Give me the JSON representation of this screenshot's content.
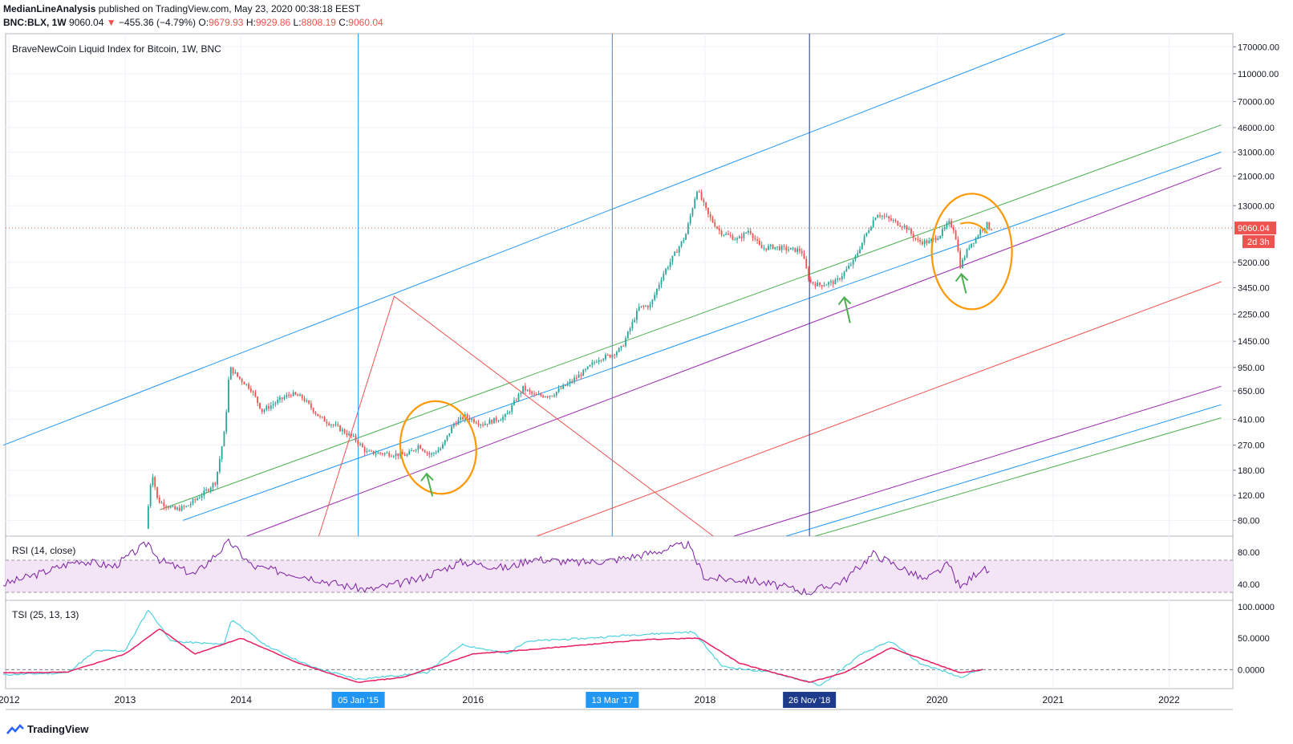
{
  "header": {
    "author": "MedianLineAnalysis",
    "published": "published on TradingView.com, May 23, 2020 00:38:18 EEST",
    "symbol": "BNC:BLX, 1W",
    "last": "9060.04",
    "change_arrow": "▼",
    "change": "−455.36 (−4.79%)",
    "o_label": "O:",
    "o_value": "9679.93",
    "h_label": "H:",
    "h_value": "9929.86",
    "l_label": "L:",
    "l_value": "8808.19",
    "c_label": "C:",
    "c_value": "9060.04"
  },
  "main_title": "BraveNewCoin Liquid Index for Bitcoin, 1W, BNC",
  "price_badge": "9060.04",
  "countdown_badge": "2d 3h",
  "rsi_title": "RSI (14, close)",
  "tsi_title": "TSI (25, 13, 13)",
  "footer_brand": "TradingView",
  "colors": {
    "up": "#26a69a",
    "down": "#ef5350",
    "rsi": "#7b1fa2",
    "rsi_band": "#f3e5f5",
    "tsi": "#4dd0e1",
    "tsi_signal": "#e91e63",
    "blue": "#2196f3",
    "green": "#4caf50",
    "purple": "#9c27b0",
    "orange": "#ff9800",
    "darkblue": "#1e3a8a"
  },
  "chart_data": {
    "type": "candlestick",
    "title": "BraveNewCoin Liquid Index for Bitcoin, 1W, BNC",
    "scale": "log",
    "ylim": [
      62,
      210000
    ],
    "y_ticks": [
      {
        "v": 170000,
        "label": "170000.00"
      },
      {
        "v": 110000,
        "label": "110000.00"
      },
      {
        "v": 70000,
        "label": "70000.00"
      },
      {
        "v": 46000,
        "label": "46000.00"
      },
      {
        "v": 31000,
        "label": "31000.00"
      },
      {
        "v": 21000,
        "label": "21000.00"
      },
      {
        "v": 13000,
        "label": "13000.00"
      },
      {
        "v": 5200,
        "label": "5200.00"
      },
      {
        "v": 3450,
        "label": "3450.00"
      },
      {
        "v": 2250,
        "label": "2250.00"
      },
      {
        "v": 1450,
        "label": "1450.00"
      },
      {
        "v": 950,
        "label": "950.00"
      },
      {
        "v": 650,
        "label": "650.00"
      },
      {
        "v": 410,
        "label": "410.00"
      },
      {
        "v": 270,
        "label": "270.00"
      },
      {
        "v": 180,
        "label": "180.00"
      },
      {
        "v": 120,
        "label": "120.00"
      },
      {
        "v": 80,
        "label": "80.00"
      }
    ],
    "x_ticks": [
      {
        "t": 2012.0,
        "label": "2012"
      },
      {
        "t": 2013.0,
        "label": "2013"
      },
      {
        "t": 2014.0,
        "label": "2014"
      },
      {
        "t": 2016.0,
        "label": "2016"
      },
      {
        "t": 2018.0,
        "label": "2018"
      },
      {
        "t": 2020.0,
        "label": "2020"
      },
      {
        "t": 2021.0,
        "label": "2021"
      },
      {
        "t": 2022.0,
        "label": "2022"
      }
    ],
    "vertical_markers": [
      {
        "t": 2015.01,
        "label": "05 Jan '15",
        "color": "#2196f3"
      },
      {
        "t": 2017.2,
        "label": "13 Mar '17",
        "color": "#2196f3"
      },
      {
        "t": 2018.9,
        "label": "26 Nov '18",
        "color": "#1e3a8a"
      }
    ],
    "price_path": [
      [
        2013.2,
        70
      ],
      [
        2013.25,
        180
      ],
      [
        2013.3,
        110
      ],
      [
        2013.45,
        95
      ],
      [
        2013.55,
        100
      ],
      [
        2013.7,
        125
      ],
      [
        2013.8,
        150
      ],
      [
        2013.88,
        350
      ],
      [
        2013.92,
        950
      ],
      [
        2014.0,
        800
      ],
      [
        2014.1,
        680
      ],
      [
        2014.2,
        470
      ],
      [
        2014.35,
        560
      ],
      [
        2014.45,
        620
      ],
      [
        2014.55,
        580
      ],
      [
        2014.7,
        420
      ],
      [
        2014.85,
        360
      ],
      [
        2015.0,
        300
      ],
      [
        2015.1,
        240
      ],
      [
        2015.3,
        235
      ],
      [
        2015.45,
        230
      ],
      [
        2015.55,
        270
      ],
      [
        2015.65,
        230
      ],
      [
        2015.75,
        260
      ],
      [
        2015.85,
        380
      ],
      [
        2015.95,
        430
      ],
      [
        2016.1,
        380
      ],
      [
        2016.3,
        430
      ],
      [
        2016.45,
        680
      ],
      [
        2016.55,
        600
      ],
      [
        2016.7,
        610
      ],
      [
        2016.85,
        740
      ],
      [
        2017.0,
        920
      ],
      [
        2017.1,
        1100
      ],
      [
        2017.2,
        1150
      ],
      [
        2017.3,
        1300
      ],
      [
        2017.45,
        2500
      ],
      [
        2017.55,
        2600
      ],
      [
        2017.65,
        4200
      ],
      [
        2017.75,
        5800
      ],
      [
        2017.85,
        8000
      ],
      [
        2017.95,
        17000
      ],
      [
        2018.05,
        11000
      ],
      [
        2018.15,
        8500
      ],
      [
        2018.3,
        7500
      ],
      [
        2018.4,
        8800
      ],
      [
        2018.5,
        6500
      ],
      [
        2018.6,
        6700
      ],
      [
        2018.75,
        6400
      ],
      [
        2018.85,
        6300
      ],
      [
        2018.92,
        3800
      ],
      [
        2019.0,
        3600
      ],
      [
        2019.15,
        3800
      ],
      [
        2019.3,
        5300
      ],
      [
        2019.4,
        8000
      ],
      [
        2019.5,
        11500
      ],
      [
        2019.6,
        10500
      ],
      [
        2019.75,
        9200
      ],
      [
        2019.85,
        7300
      ],
      [
        2019.95,
        7200
      ],
      [
        2020.05,
        8200
      ],
      [
        2020.12,
        9900
      ],
      [
        2020.17,
        8800
      ],
      [
        2020.22,
        4900
      ],
      [
        2020.3,
        6900
      ],
      [
        2020.35,
        7600
      ],
      [
        2020.4,
        8900
      ],
      [
        2020.45,
        9600
      ],
      [
        2020.47,
        9060.04
      ]
    ],
    "pitchforks": [
      {
        "name": "blue_upper",
        "from": [
          2011.95,
          270
        ],
        "to": [
          2021.1,
          210000
        ],
        "color": "#2196f3"
      },
      {
        "name": "green_median",
        "from": [
          2013.3,
          95
        ],
        "to": [
          2022.45,
          48000
        ],
        "color": "#4caf50"
      },
      {
        "name": "lightblue_median",
        "from": [
          2013.5,
          80
        ],
        "to": [
          2022.45,
          31000
        ],
        "color": "#2196f3"
      },
      {
        "name": "purple_lower",
        "from": [
          2014.05,
          62
        ],
        "to": [
          2022.45,
          24000
        ],
        "color": "#9c27b0"
      },
      {
        "name": "red_outer",
        "from": [
          2016.55,
          62
        ],
        "to": [
          2022.45,
          3800
        ],
        "color": "#ef5350"
      },
      {
        "name": "purple_far",
        "from": [
          2018.25,
          62
        ],
        "to": [
          2022.45,
          700
        ],
        "color": "#9c27b0"
      },
      {
        "name": "lightblue_far",
        "from": [
          2018.7,
          62
        ],
        "to": [
          2022.45,
          520
        ],
        "color": "#2196f3"
      },
      {
        "name": "green_far",
        "from": [
          2018.95,
          62
        ],
        "to": [
          2022.45,
          420
        ],
        "color": "#4caf50"
      }
    ],
    "red_triangle": [
      [
        2014.67,
        62
      ],
      [
        2015.32,
        3000
      ],
      [
        2018.07,
        62
      ]
    ],
    "rsi": {
      "ylim": [
        20,
        100
      ],
      "ticks": [
        {
          "v": 80,
          "label": "80.00"
        },
        {
          "v": 40,
          "label": "40.00"
        }
      ],
      "band": [
        30,
        70
      ],
      "path": [
        [
          2011.95,
          40
        ],
        [
          2012.3,
          55
        ],
        [
          2012.6,
          70
        ],
        [
          2012.9,
          62
        ],
        [
          2013.2,
          92
        ],
        [
          2013.3,
          70
        ],
        [
          2013.6,
          52
        ],
        [
          2013.9,
          93
        ],
        [
          2014.1,
          62
        ],
        [
          2014.5,
          52
        ],
        [
          2014.9,
          38
        ],
        [
          2015.1,
          33
        ],
        [
          2015.5,
          45
        ],
        [
          2015.9,
          68
        ],
        [
          2016.3,
          60
        ],
        [
          2016.5,
          72
        ],
        [
          2016.9,
          67
        ],
        [
          2017.2,
          70
        ],
        [
          2017.5,
          78
        ],
        [
          2017.85,
          90
        ],
        [
          2018.0,
          48
        ],
        [
          2018.4,
          45
        ],
        [
          2018.9,
          30
        ],
        [
          2019.2,
          45
        ],
        [
          2019.45,
          78
        ],
        [
          2019.7,
          60
        ],
        [
          2019.9,
          45
        ],
        [
          2020.1,
          65
        ],
        [
          2020.2,
          35
        ],
        [
          2020.38,
          60
        ],
        [
          2020.45,
          55
        ]
      ]
    },
    "tsi": {
      "ylim": [
        -30,
        110
      ],
      "ticks": [
        {
          "v": 100,
          "label": "100.0000"
        },
        {
          "v": 50,
          "label": "50.0000"
        },
        {
          "v": 0,
          "label": "0.0000"
        }
      ],
      "zero_line": 0,
      "tsi_path": [
        [
          2011.95,
          -8
        ],
        [
          2012.5,
          -5
        ],
        [
          2012.75,
          30
        ],
        [
          2013.0,
          30
        ],
        [
          2013.2,
          95
        ],
        [
          2013.4,
          45
        ],
        [
          2013.85,
          40
        ],
        [
          2013.92,
          80
        ],
        [
          2014.2,
          40
        ],
        [
          2014.6,
          5
        ],
        [
          2015.0,
          -15
        ],
        [
          2015.3,
          -10
        ],
        [
          2015.6,
          -5
        ],
        [
          2015.9,
          40
        ],
        [
          2016.3,
          25
        ],
        [
          2016.45,
          45
        ],
        [
          2017.0,
          50
        ],
        [
          2017.35,
          55
        ],
        [
          2017.9,
          60
        ],
        [
          2018.15,
          5
        ],
        [
          2018.6,
          -5
        ],
        [
          2019.0,
          -25
        ],
        [
          2019.35,
          25
        ],
        [
          2019.6,
          45
        ],
        [
          2019.85,
          10
        ],
        [
          2020.05,
          -2
        ],
        [
          2020.2,
          -12
        ],
        [
          2020.4,
          2
        ]
      ],
      "signal_path": [
        [
          2011.95,
          -5
        ],
        [
          2012.5,
          -4
        ],
        [
          2013.0,
          25
        ],
        [
          2013.3,
          65
        ],
        [
          2013.6,
          25
        ],
        [
          2014.0,
          50
        ],
        [
          2014.5,
          10
        ],
        [
          2015.0,
          -20
        ],
        [
          2015.4,
          -12
        ],
        [
          2016.0,
          25
        ],
        [
          2016.5,
          32
        ],
        [
          2017.0,
          40
        ],
        [
          2017.5,
          48
        ],
        [
          2017.95,
          50
        ],
        [
          2018.3,
          10
        ],
        [
          2018.9,
          -20
        ],
        [
          2019.2,
          -5
        ],
        [
          2019.6,
          35
        ],
        [
          2019.9,
          15
        ],
        [
          2020.2,
          -5
        ],
        [
          2020.4,
          0
        ]
      ]
    }
  }
}
